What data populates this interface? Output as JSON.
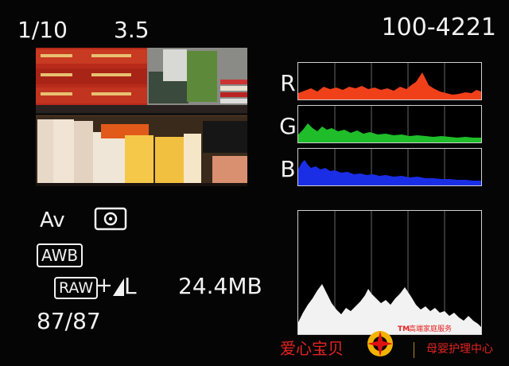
{
  "header": {
    "shutter_speed": "1/10",
    "aperture": "3.5",
    "file_number": "100-4221"
  },
  "info": {
    "shooting_mode": "Av",
    "metering_icon": "evaluative-metering-icon",
    "white_balance": "AWB",
    "raw_label": "RAW",
    "plus": "+",
    "quality_icon": "jpeg-quality-fine-icon",
    "quality_size": "L",
    "file_size": "24.4MB",
    "frame_counter": "87/87"
  },
  "histogram": {
    "channels": [
      {
        "label": "R",
        "color": "#f0401a"
      },
      {
        "label": "G",
        "color": "#1fbd2a"
      },
      {
        "label": "B",
        "color": "#1a2ee6"
      }
    ],
    "luminance_color": "#f2f2f2"
  },
  "watermark": {
    "brand": "爱心宝贝",
    "tm": "TM",
    "subtitle": "高端家庭服务",
    "tagline": "母婴护理中心",
    "color": "#e52222"
  }
}
